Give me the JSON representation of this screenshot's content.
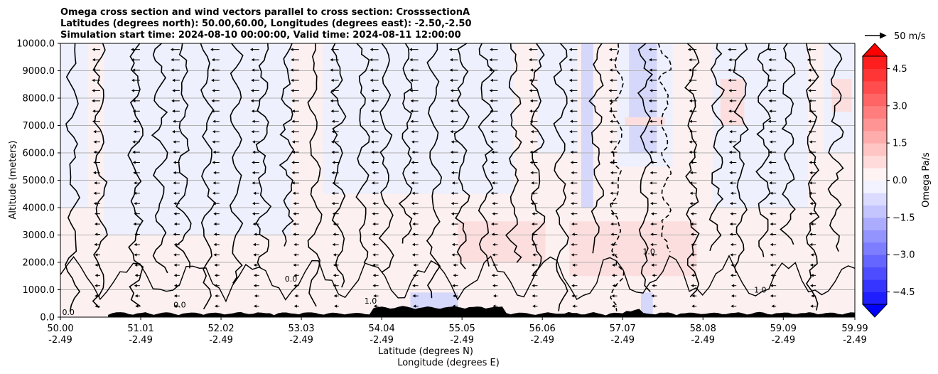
{
  "chart_data": {
    "type": "heatmap",
    "title_lines": [
      "Omega cross section and wind vectors parallel to cross section: CrosssectionA",
      "Latitudes (degrees north): 50.00,60.00, Longitudes (degrees east): -2.50,-2.50",
      "Simulation start time: 2024-08-10 00:00:00, Valid time: 2024-08-11 12:00:00"
    ],
    "ylabel": "Altitude (meters)",
    "xlabel_line1": "Latitude (degrees N)",
    "xlabel_line2": "Longitude (degrees E)",
    "xlim": [
      50.0,
      59.99
    ],
    "ylim": [
      0,
      10000
    ],
    "grid": "horizontal",
    "x_ticks": [
      {
        "value": 50.0,
        "lat": "50.00",
        "lon": "-2.49"
      },
      {
        "value": 51.01,
        "lat": "51.01",
        "lon": "-2.49"
      },
      {
        "value": 52.02,
        "lat": "52.02",
        "lon": "-2.49"
      },
      {
        "value": 53.03,
        "lat": "53.03",
        "lon": "-2.49"
      },
      {
        "value": 54.04,
        "lat": "54.04",
        "lon": "-2.49"
      },
      {
        "value": 55.05,
        "lat": "55.05",
        "lon": "-2.49"
      },
      {
        "value": 56.06,
        "lat": "56.06",
        "lon": "-2.49"
      },
      {
        "value": 57.07,
        "lat": "57.07",
        "lon": "-2.49"
      },
      {
        "value": 58.08,
        "lat": "58.08",
        "lon": "-2.49"
      },
      {
        "value": 59.09,
        "lat": "59.09",
        "lon": "-2.49"
      },
      {
        "value": 59.99,
        "lat": "59.99",
        "lon": "-2.49"
      }
    ],
    "y_ticks": [
      {
        "value": 0,
        "label": "0.0"
      },
      {
        "value": 1000,
        "label": "1000.0"
      },
      {
        "value": 2000,
        "label": "2000.0"
      },
      {
        "value": 3000,
        "label": "3000.0"
      },
      {
        "value": 4000,
        "label": "4000.0"
      },
      {
        "value": 5000,
        "label": "5000.0"
      },
      {
        "value": 6000,
        "label": "6000.0"
      },
      {
        "value": 7000,
        "label": "7000.0"
      },
      {
        "value": 8000,
        "label": "8000.0"
      },
      {
        "value": 9000,
        "label": "9000.0"
      },
      {
        "value": 10000,
        "label": "10000.0"
      }
    ],
    "colorbar": {
      "label": "Omega Pa/s",
      "vmin": -5.0,
      "vmax": 5.0,
      "ticks": [
        {
          "value": 4.5,
          "label": "4.5"
        },
        {
          "value": 3.0,
          "label": "3.0"
        },
        {
          "value": 1.5,
          "label": "1.5"
        },
        {
          "value": 0.0,
          "label": "0.0"
        },
        {
          "value": -1.5,
          "label": "−1.5"
        },
        {
          "value": -3.0,
          "label": "−3.0"
        },
        {
          "value": -4.5,
          "label": "−4.5"
        }
      ],
      "positive_color": "#ff0000",
      "negative_color": "#0000ff"
    },
    "quiver_key": {
      "label": "50 m/s"
    },
    "contour_labels": [
      {
        "text": "0.0",
        "lat": 51.5,
        "alt": 350
      },
      {
        "text": "0.0",
        "lat": 52.9,
        "alt": 1300
      },
      {
        "text": "1.0",
        "lat": 53.9,
        "alt": 500
      },
      {
        "text": "1.0",
        "lat": 57.4,
        "alt": 2300
      },
      {
        "text": "1.0",
        "lat": 58.8,
        "alt": 900
      },
      {
        "text": "0.0",
        "lat": 50.1,
        "alt": 80
      }
    ]
  }
}
